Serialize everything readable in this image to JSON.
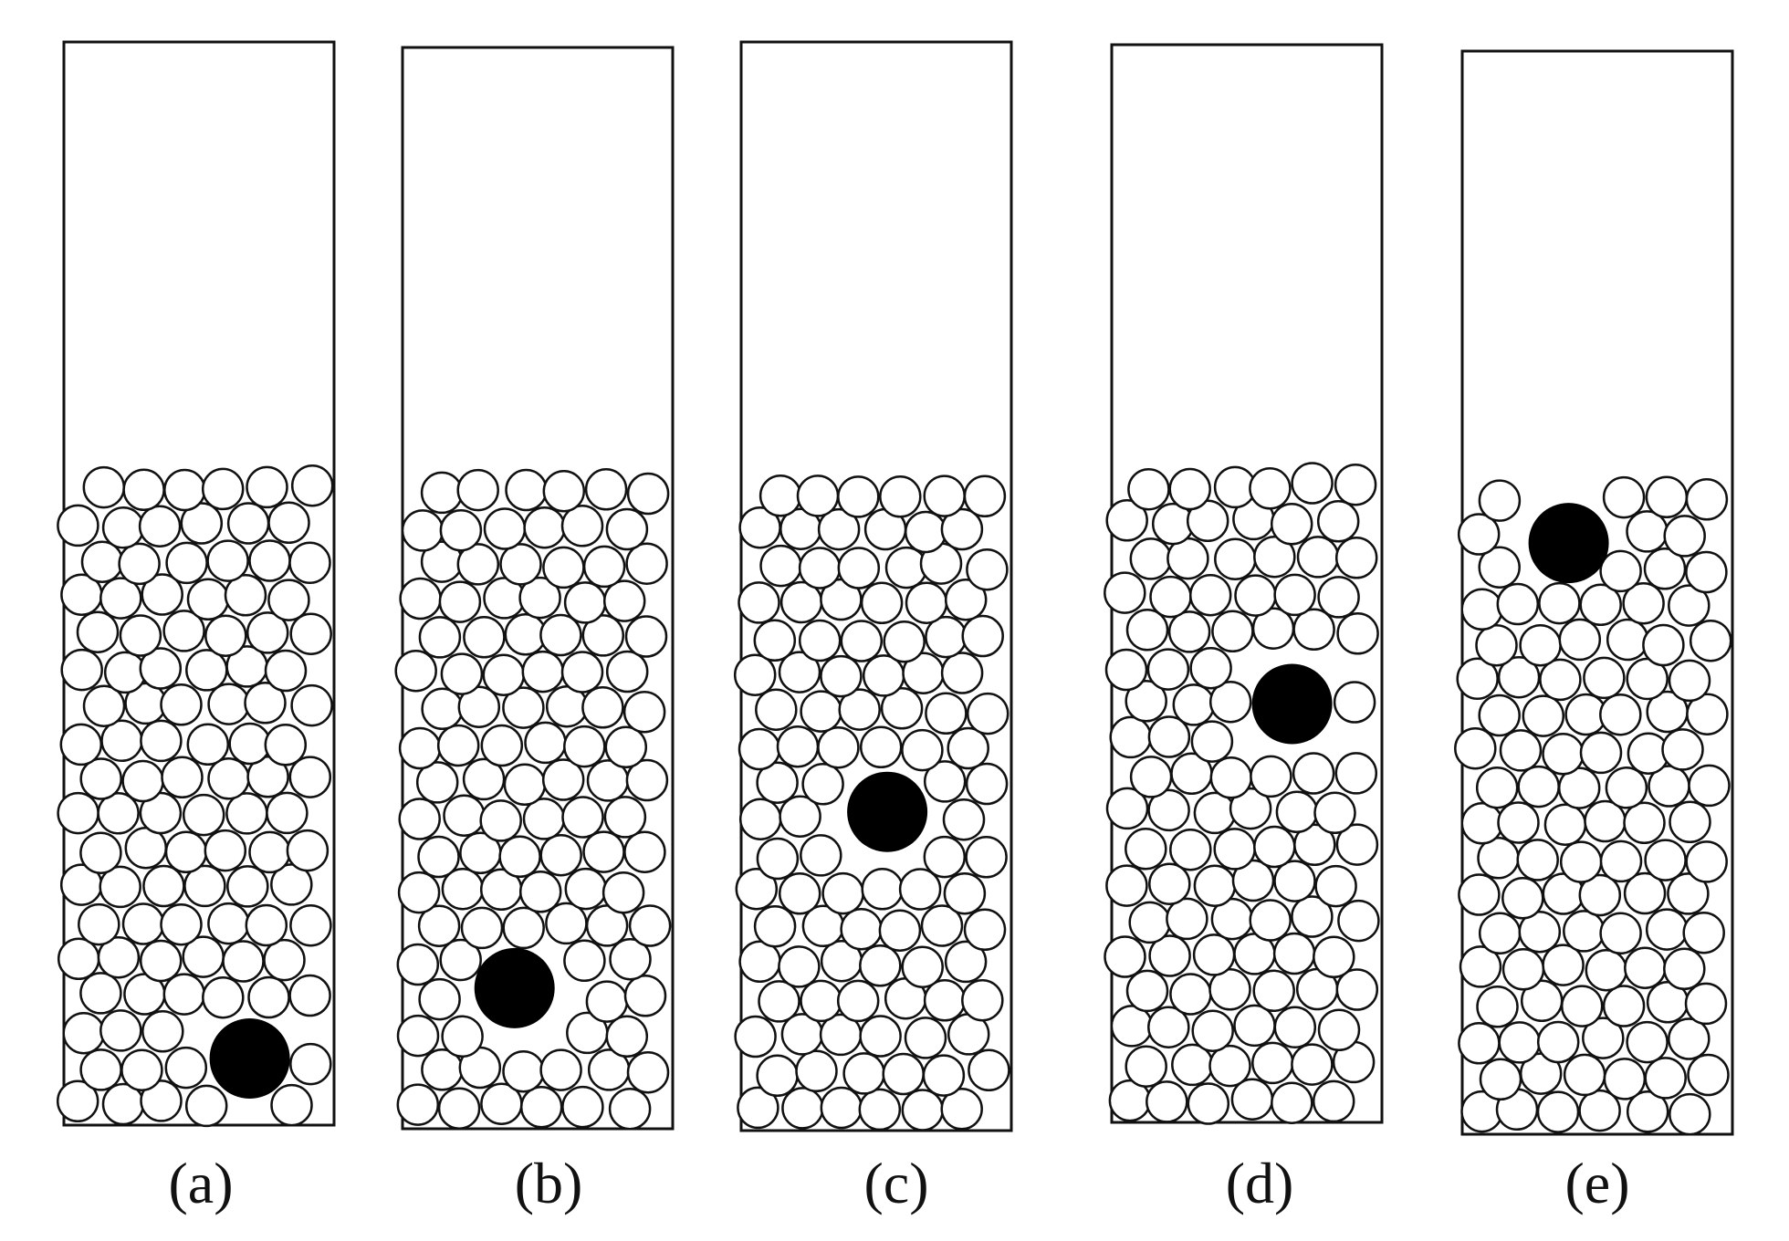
{
  "figure": {
    "panels": [
      {
        "label": "(a)",
        "intruder_level": 0.04
      },
      {
        "label": "(b)",
        "intruder_level": 0.17
      },
      {
        "label": "(c)",
        "intruder_level": 0.47
      },
      {
        "label": "(d)",
        "intruder_level": 0.66
      },
      {
        "label": "(e)",
        "intruder_level": 0.93
      }
    ],
    "colors": {
      "outline": "#111111",
      "small_disk_fill": "#ffffff",
      "intruder_fill": "#000000"
    }
  }
}
